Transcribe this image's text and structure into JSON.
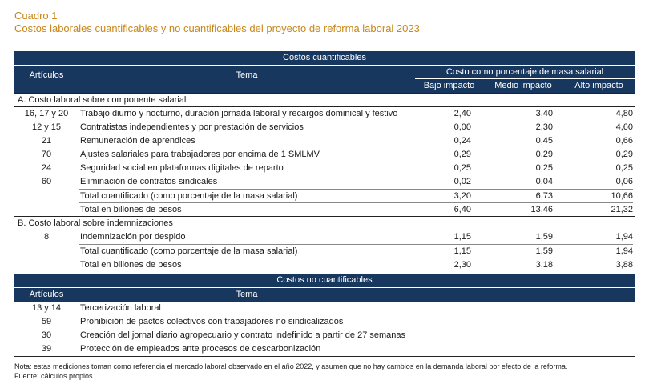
{
  "title": {
    "label": "Cuadro 1",
    "text": "Costos laborales cuantificables y no cuantificables del proyecto de reforma laboral 2023"
  },
  "quant": {
    "header": "Costos cuantificables",
    "col_articulos": "Artículos",
    "col_tema": "Tema",
    "col_group": "Costo como porcentaje de masa salarial",
    "col_bajo": "Bajo impacto",
    "col_medio": "Medio impacto",
    "col_alto": "Alto impacto",
    "section_a": "A. Costo laboral sobre componente salarial",
    "rows_a": [
      {
        "art": "16, 17 y 20",
        "tema": "Trabajo diurno y nocturno, duración jornada laboral y recargos dominical y festivo",
        "bajo": "2,40",
        "medio": "3,40",
        "alto": "4,80"
      },
      {
        "art": "12 y 15",
        "tema": "Contratistas independientes y por prestación de servicios",
        "bajo": "0,00",
        "medio": "2,30",
        "alto": "4,60"
      },
      {
        "art": "21",
        "tema": "Remuneración de aprendices",
        "bajo": "0,24",
        "medio": "0,45",
        "alto": "0,66"
      },
      {
        "art": "70",
        "tema": "Ajustes salariales para trabajadores por encima de 1 SMLMV",
        "bajo": "0,29",
        "medio": "0,29",
        "alto": "0,29"
      },
      {
        "art": "24",
        "tema": "Seguridad social en plataformas digitales de reparto",
        "bajo": "0,25",
        "medio": "0,25",
        "alto": "0,25"
      },
      {
        "art": "60",
        "tema": "Eliminación de contratos sindicales",
        "bajo": "0,02",
        "medio": "0,04",
        "alto": "0,06"
      }
    ],
    "total_a_pct": {
      "tema": "Total cuantificado (como porcentaje de la masa salarial)",
      "bajo": "3,20",
      "medio": "6,73",
      "alto": "10,66"
    },
    "total_a_pesos": {
      "tema": "Total en billones de pesos",
      "bajo": "6,40",
      "medio": "13,46",
      "alto": "21,32"
    },
    "section_b": "B. Costo laboral sobre indemnizaciones",
    "rows_b": [
      {
        "art": "8",
        "tema": "Indemnización por despido",
        "bajo": "1,15",
        "medio": "1,59",
        "alto": "1,94"
      }
    ],
    "total_b_pct": {
      "tema": "Total cuantificado (como porcentaje de la masa salarial)",
      "bajo": "1,15",
      "medio": "1,59",
      "alto": "1,94"
    },
    "total_b_pesos": {
      "tema": "Total en billones de pesos",
      "bajo": "2,30",
      "medio": "3,18",
      "alto": "3,88"
    }
  },
  "nonquant": {
    "header": "Costos no cuantificables",
    "col_articulos": "Artículos",
    "col_tema": "Tema",
    "rows": [
      {
        "art": "13 y 14",
        "tema": "Tercerización laboral"
      },
      {
        "art": "59",
        "tema": "Prohibición de pactos colectivos con trabajadores no sindicalizados"
      },
      {
        "art": "30",
        "tema": "Creación del jornal diario agropecuario y contrato indefinido a partir de 27 semanas"
      },
      {
        "art": "39",
        "tema": "Protección de empleados ante procesos de descarbonización"
      }
    ]
  },
  "notes": {
    "note": "Nota: estas mediciones toman como referencia el mercado laboral observado en el año 2022, y asumen que no hay cambios en la demanda laboral por efecto de la reforma.",
    "source": "Fuente: cálculos propios"
  },
  "colors": {
    "header_bg": "#17375e",
    "title": "#c8871a"
  }
}
